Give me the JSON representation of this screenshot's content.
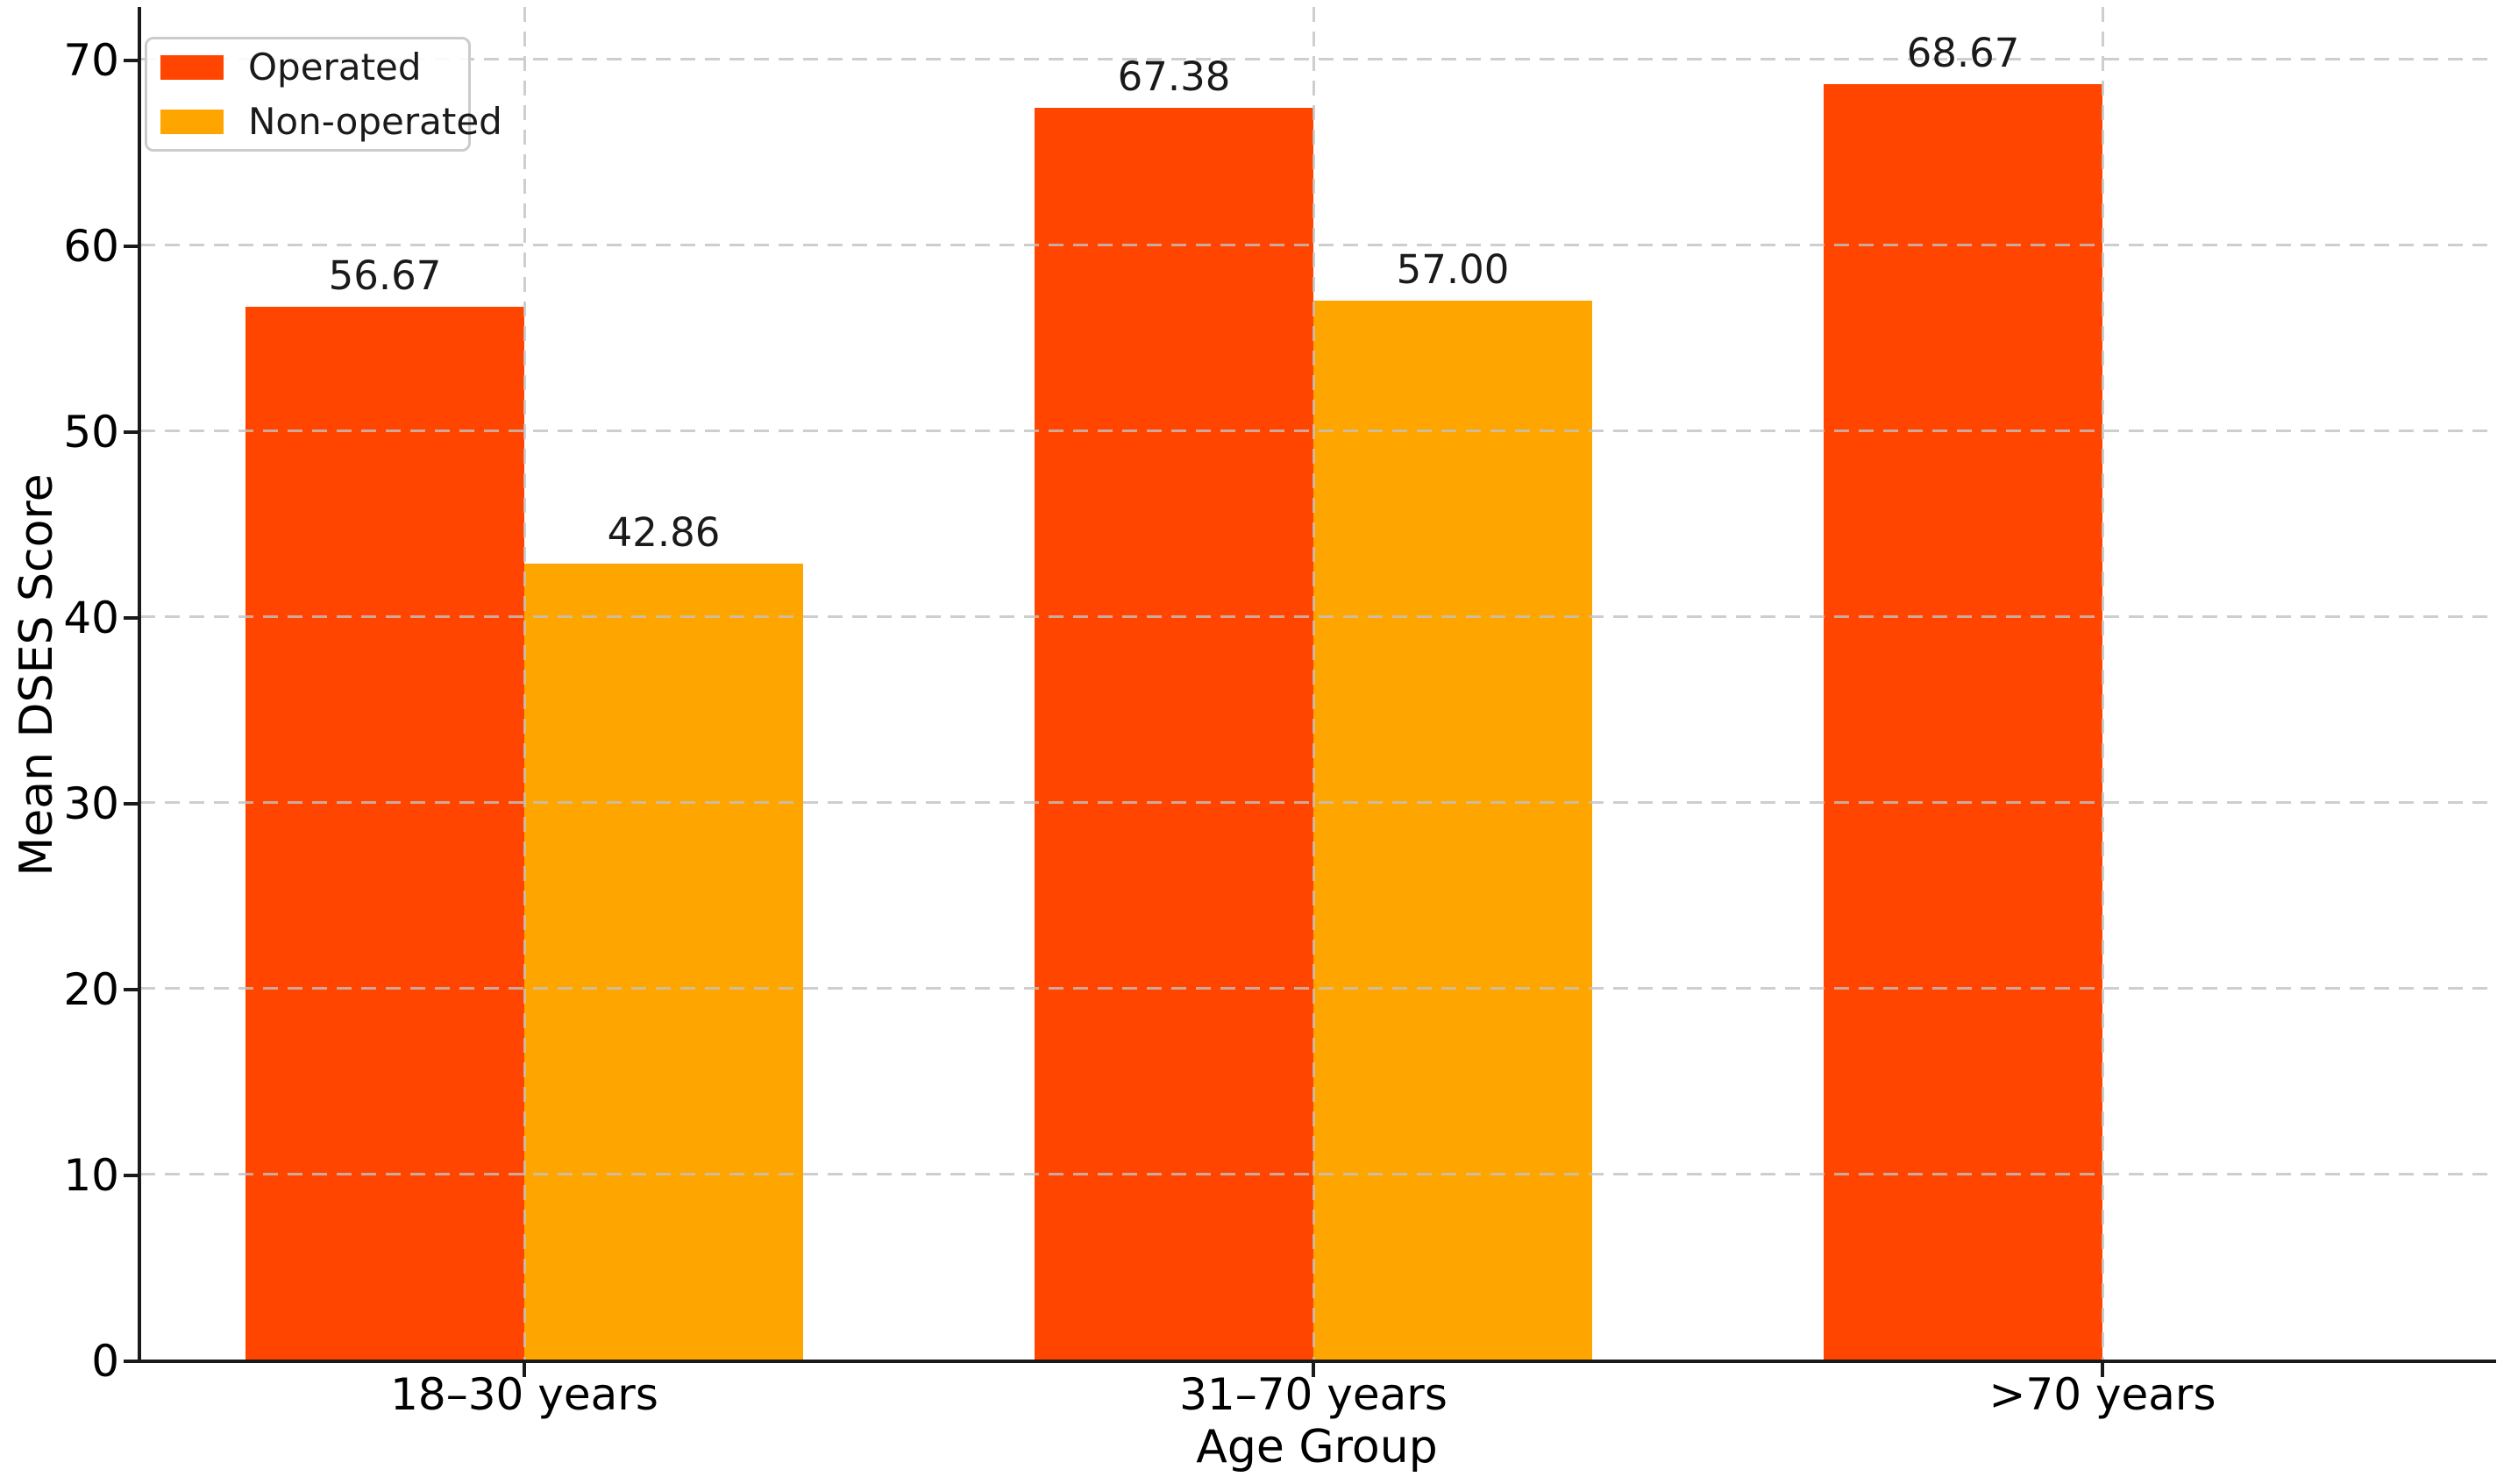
{
  "chart_data": {
    "type": "bar",
    "title": "",
    "xlabel": "Age Group",
    "ylabel": "Mean DSES Score",
    "categories": [
      "18–30 years",
      "31–70 years",
      ">70 years"
    ],
    "series": [
      {
        "name": "Operated",
        "color": "#FF4500",
        "values": [
          56.67,
          67.38,
          68.67
        ],
        "value_labels": [
          "56.67",
          "67.38",
          "68.67"
        ]
      },
      {
        "name": "Non-operated",
        "color": "#FFA500",
        "values": [
          42.86,
          57.0,
          null
        ],
        "value_labels": [
          "42.86",
          "57.00",
          null
        ]
      }
    ],
    "y_ticks": [
      0,
      10,
      20,
      30,
      40,
      50,
      60,
      70
    ],
    "ylim": [
      0,
      72.8
    ],
    "grid": "dashed-both-axes",
    "gridline_color": "#c2c2c2",
    "legend_position": "upper-left"
  }
}
